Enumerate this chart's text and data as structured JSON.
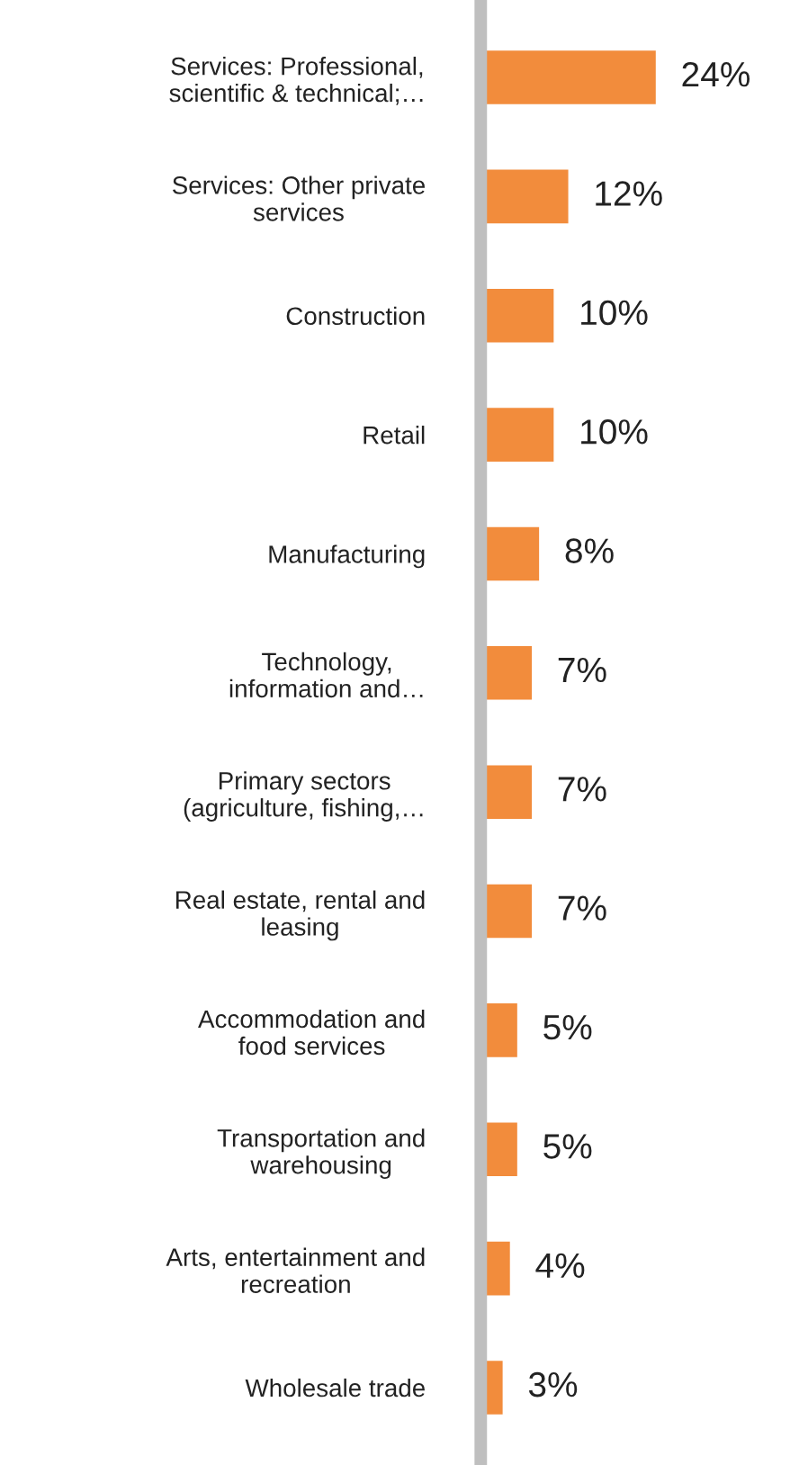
{
  "chart_data": {
    "type": "bar",
    "orientation": "horizontal",
    "categories": [
      "Services: Professional,\nscientific & technical;…",
      "Services: Other private\nservices",
      "Construction",
      "Retail",
      "Manufacturing",
      "Technology,\ninformation and…",
      "Primary sectors\n(agriculture, fishing,…",
      "Real estate, rental and\nleasing",
      "Accommodation and\nfood services",
      "Transportation and\nwarehousing",
      "Arts, entertainment and\nrecreation",
      "Wholesale trade"
    ],
    "values": [
      24,
      12,
      10,
      10,
      8,
      7,
      7,
      7,
      5,
      5,
      4,
      3
    ],
    "value_labels": [
      "24%",
      "12%",
      "10%",
      "10%",
      "8%",
      "7%",
      "7%",
      "7%",
      "5%",
      "5%",
      "4%",
      "3%"
    ],
    "color": "#f28c3c",
    "grid": false,
    "legend": false,
    "tick_labels": "y"
  }
}
